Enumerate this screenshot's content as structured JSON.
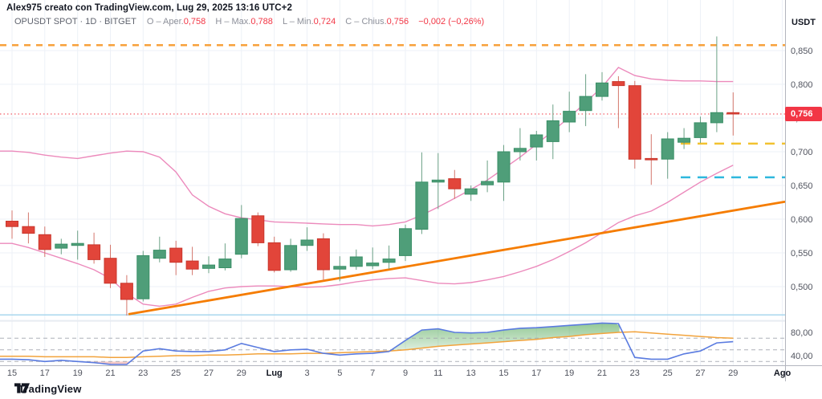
{
  "header": {
    "attribution": "Alex975 creato con TradingView.com, Lug 29, 2025 13:16 UTC+2",
    "legend": {
      "symbol_text": "OPUSDT SPOT · 1D · BITGET",
      "open_label": "O – Aper.",
      "open": "0,758",
      "high_label": "H – Max.",
      "high": "0,788",
      "low_label": "L – Min.",
      "low": "0,724",
      "close_label": "C – Chius.",
      "close": "0,756",
      "change": "−0,002 (−0,26%)"
    }
  },
  "price_axis": {
    "currency": "USDT",
    "ticks": [
      "0,850",
      "0,800",
      "0,750",
      "0,700",
      "0,650",
      "0,600",
      "0,550",
      "0,500"
    ],
    "tick_values": [
      0.85,
      0.8,
      0.75,
      0.7,
      0.65,
      0.6,
      0.55,
      0.5
    ],
    "last_price": "0,756",
    "last_price_value": 0.756
  },
  "indicator_axis": {
    "ticks": [
      "80,00",
      "40,00"
    ],
    "tick_values": [
      80,
      40
    ],
    "guide_values": [
      70,
      50,
      30
    ]
  },
  "time_axis": {
    "ticks": [
      {
        "label": "15",
        "index": 0,
        "bold": false
      },
      {
        "label": "17",
        "index": 2,
        "bold": false
      },
      {
        "label": "19",
        "index": 4,
        "bold": false
      },
      {
        "label": "21",
        "index": 6,
        "bold": false
      },
      {
        "label": "23",
        "index": 8,
        "bold": false
      },
      {
        "label": "25",
        "index": 10,
        "bold": false
      },
      {
        "label": "27",
        "index": 12,
        "bold": false
      },
      {
        "label": "29",
        "index": 14,
        "bold": false
      },
      {
        "label": "Lug",
        "index": 16,
        "bold": true
      },
      {
        "label": "3",
        "index": 18,
        "bold": false
      },
      {
        "label": "5",
        "index": 20,
        "bold": false
      },
      {
        "label": "7",
        "index": 22,
        "bold": false
      },
      {
        "label": "9",
        "index": 24,
        "bold": false
      },
      {
        "label": "11",
        "index": 26,
        "bold": false
      },
      {
        "label": "13",
        "index": 28,
        "bold": false
      },
      {
        "label": "15",
        "index": 30,
        "bold": false
      },
      {
        "label": "17",
        "index": 32,
        "bold": false
      },
      {
        "label": "19",
        "index": 34,
        "bold": false
      },
      {
        "label": "21",
        "index": 36,
        "bold": false
      },
      {
        "label": "23",
        "index": 38,
        "bold": false
      },
      {
        "label": "25",
        "index": 40,
        "bold": false
      },
      {
        "label": "27",
        "index": 42,
        "bold": false
      },
      {
        "label": "29",
        "index": 44,
        "bold": false
      },
      {
        "label": "Ago",
        "index": 47,
        "bold": true
      }
    ]
  },
  "footer": {
    "brand": "TradingView"
  },
  "colors": {
    "up": "#4f9e79",
    "up_border": "#3a8f67",
    "up_wick": "#6ba186",
    "down": "#e2453a",
    "down_border": "#c8362c",
    "down_wick": "#d4766c",
    "band": "#ec8abc",
    "trend": "#f57c00",
    "level_orange": "#f7a13b",
    "level_yellow": "#f2c230",
    "level_cyan": "#2fb8dd",
    "level_sky": "#a9d7ee",
    "price_line": "#f23645",
    "osc_blue": "#5a7be0",
    "osc_orange": "#f2a33c",
    "overbought_fill": "#43a047",
    "oversold_fill": "#e5564a",
    "grid": "#edf1f7",
    "guide": "#a0a3ac",
    "axis_text": "#50535e",
    "axis_text_bold": "#131722",
    "axis_border": "#b2b5be"
  },
  "chart_data": {
    "type": "candlestick",
    "title": "OPUSDT SPOT 1D BITGET",
    "ylabel": "USDT",
    "ylim": [
      0.44,
      0.875
    ],
    "oscillator_visible_range": [
      23,
      100
    ],
    "dates": [
      "2025-06-15",
      "2025-06-16",
      "2025-06-17",
      "2025-06-18",
      "2025-06-19",
      "2025-06-20",
      "2025-06-21",
      "2025-06-22",
      "2025-06-23",
      "2025-06-24",
      "2025-06-25",
      "2025-06-26",
      "2025-06-27",
      "2025-06-28",
      "2025-06-29",
      "2025-06-30",
      "2025-07-01",
      "2025-07-02",
      "2025-07-03",
      "2025-07-04",
      "2025-07-05",
      "2025-07-06",
      "2025-07-07",
      "2025-07-08",
      "2025-07-09",
      "2025-07-10",
      "2025-07-11",
      "2025-07-12",
      "2025-07-13",
      "2025-07-14",
      "2025-07-15",
      "2025-07-16",
      "2025-07-17",
      "2025-07-18",
      "2025-07-19",
      "2025-07-20",
      "2025-07-21",
      "2025-07-22",
      "2025-07-23",
      "2025-07-24",
      "2025-07-25",
      "2025-07-26",
      "2025-07-27",
      "2025-07-28",
      "2025-07-29"
    ],
    "open": [
      0.597,
      0.589,
      0.577,
      0.557,
      0.561,
      0.562,
      0.542,
      0.505,
      0.482,
      0.542,
      0.557,
      0.538,
      0.527,
      0.528,
      0.548,
      0.605,
      0.565,
      0.525,
      0.561,
      0.571,
      0.526,
      0.53,
      0.531,
      0.536,
      0.546,
      0.585,
      0.655,
      0.66,
      0.637,
      0.651,
      0.655,
      0.7,
      0.707,
      0.715,
      0.744,
      0.761,
      0.782,
      0.804,
      0.798,
      0.69,
      0.689,
      0.714,
      0.721,
      0.743,
      0.758
    ],
    "high": [
      0.613,
      0.61,
      0.589,
      0.571,
      0.583,
      0.58,
      0.562,
      0.517,
      0.553,
      0.574,
      0.568,
      0.559,
      0.545,
      0.564,
      0.621,
      0.61,
      0.574,
      0.571,
      0.588,
      0.579,
      0.545,
      0.555,
      0.558,
      0.561,
      0.592,
      0.699,
      0.698,
      0.673,
      0.65,
      0.687,
      0.71,
      0.735,
      0.731,
      0.77,
      0.789,
      0.815,
      0.818,
      0.812,
      0.805,
      0.726,
      0.729,
      0.735,
      0.752,
      0.871,
      0.788
    ],
    "low": [
      0.571,
      0.564,
      0.544,
      0.548,
      0.54,
      0.534,
      0.498,
      0.457,
      0.478,
      0.536,
      0.517,
      0.517,
      0.52,
      0.524,
      0.542,
      0.56,
      0.521,
      0.522,
      0.553,
      0.509,
      0.508,
      0.525,
      0.526,
      0.526,
      0.538,
      0.578,
      0.615,
      0.63,
      0.627,
      0.64,
      0.627,
      0.687,
      0.687,
      0.689,
      0.729,
      0.738,
      0.776,
      0.735,
      0.675,
      0.651,
      0.66,
      0.704,
      0.713,
      0.729,
      0.724
    ],
    "close": [
      0.589,
      0.579,
      0.555,
      0.563,
      0.564,
      0.54,
      0.505,
      0.481,
      0.546,
      0.554,
      0.536,
      0.526,
      0.532,
      0.541,
      0.601,
      0.565,
      0.524,
      0.561,
      0.569,
      0.525,
      0.53,
      0.544,
      0.535,
      0.541,
      0.586,
      0.655,
      0.658,
      0.645,
      0.645,
      0.656,
      0.7,
      0.705,
      0.725,
      0.746,
      0.76,
      0.782,
      0.802,
      0.798,
      0.689,
      0.688,
      0.719,
      0.72,
      0.743,
      0.758,
      0.756
    ],
    "bands": {
      "upper": [
        0.701,
        0.699,
        0.695,
        0.692,
        0.69,
        0.694,
        0.698,
        0.701,
        0.7,
        0.692,
        0.67,
        0.636,
        0.619,
        0.608,
        0.602,
        0.599,
        0.596,
        0.595,
        0.594,
        0.593,
        0.592,
        0.592,
        0.59,
        0.592,
        0.596,
        0.606,
        0.618,
        0.631,
        0.644,
        0.658,
        0.675,
        0.692,
        0.711,
        0.731,
        0.751,
        0.773,
        0.796,
        0.825,
        0.813,
        0.808,
        0.806,
        0.805,
        0.805,
        0.804,
        0.804
      ],
      "lower": [
        0.564,
        0.558,
        0.55,
        0.542,
        0.534,
        0.525,
        0.512,
        0.49,
        0.474,
        0.471,
        0.474,
        0.484,
        0.493,
        0.498,
        0.5,
        0.501,
        0.501,
        0.5,
        0.499,
        0.5,
        0.503,
        0.507,
        0.51,
        0.512,
        0.513,
        0.509,
        0.505,
        0.504,
        0.506,
        0.51,
        0.515,
        0.522,
        0.53,
        0.54,
        0.552,
        0.565,
        0.58,
        0.595,
        0.605,
        0.612,
        0.625,
        0.64,
        0.655,
        0.668,
        0.68
      ]
    },
    "trendline": {
      "points": [
        [
          7.1,
          0.459
        ],
        [
          47.2,
          0.626
        ]
      ]
    },
    "levels": [
      {
        "price": 0.858,
        "from": "left",
        "color_key": "level_orange",
        "dash": "8,7",
        "width": 2.5
      },
      {
        "price": 0.712,
        "from": 40.8,
        "color_key": "level_yellow",
        "dash": "12,9",
        "width": 2.5
      },
      {
        "price": 0.662,
        "from": 40.8,
        "color_key": "level_cyan",
        "dash": "12,9",
        "width": 2.5
      },
      {
        "price": 0.458,
        "from": "left",
        "color_key": "level_sky",
        "dash": "",
        "width": 1.5
      }
    ],
    "last_price_line": 0.756,
    "oscillator": {
      "blue": [
        34,
        33,
        30,
        32,
        30,
        28,
        25,
        23,
        48,
        52,
        48,
        47,
        47,
        50,
        61,
        54,
        47,
        50,
        51,
        44,
        41,
        43,
        44,
        47,
        66,
        84,
        86,
        80,
        79,
        80,
        84,
        87,
        88,
        90,
        92,
        94,
        96,
        95,
        37,
        34,
        34,
        43,
        48,
        62,
        64
      ],
      "orange": [
        39,
        39,
        38,
        38,
        38,
        38,
        37,
        37,
        38,
        39,
        40,
        40,
        41,
        41,
        42,
        43,
        43,
        43,
        44,
        44,
        45,
        46,
        47,
        48,
        50,
        53,
        56,
        58,
        60,
        62,
        64,
        66,
        68,
        71,
        73,
        76,
        78,
        80,
        81,
        79,
        77,
        75,
        73,
        71,
        70
      ],
      "guides": [
        70,
        50,
        30
      ],
      "fill_spans": {
        "overbought": [
          23.06,
          37.25
        ],
        "oversold": [
          4.0,
          7.28
        ]
      }
    }
  }
}
